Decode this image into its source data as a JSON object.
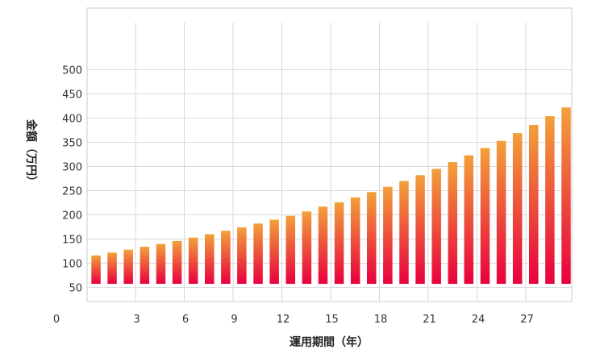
{
  "chart_data": {
    "type": "bar",
    "title": "",
    "xlabel": "運用期間（年）",
    "ylabel": "金額（万円）",
    "x": [
      1,
      2,
      3,
      4,
      5,
      6,
      7,
      8,
      9,
      10,
      11,
      12,
      13,
      14,
      15,
      16,
      17,
      18,
      19,
      20,
      21,
      22,
      23,
      24,
      25,
      26,
      27,
      28,
      29,
      30
    ],
    "values": [
      116,
      122,
      128,
      134,
      140,
      146,
      153,
      160,
      167,
      174,
      182,
      190,
      198,
      207,
      217,
      226,
      236,
      247,
      258,
      270,
      282,
      295,
      309,
      323,
      338,
      353,
      369,
      386,
      404,
      422
    ],
    "ylim": [
      25,
      525
    ],
    "yticks": [
      50,
      100,
      150,
      200,
      250,
      300,
      350,
      400,
      450,
      500
    ],
    "xticks": [
      "0",
      "3",
      "6",
      "9",
      "12",
      "15",
      "18",
      "21",
      "24",
      "27"
    ],
    "grid": true,
    "colors": {
      "bar_top": "#f2a03a",
      "bar_bottom": "#e8003e",
      "grid": "#d9d9d9",
      "frame": "#cccccc"
    }
  }
}
